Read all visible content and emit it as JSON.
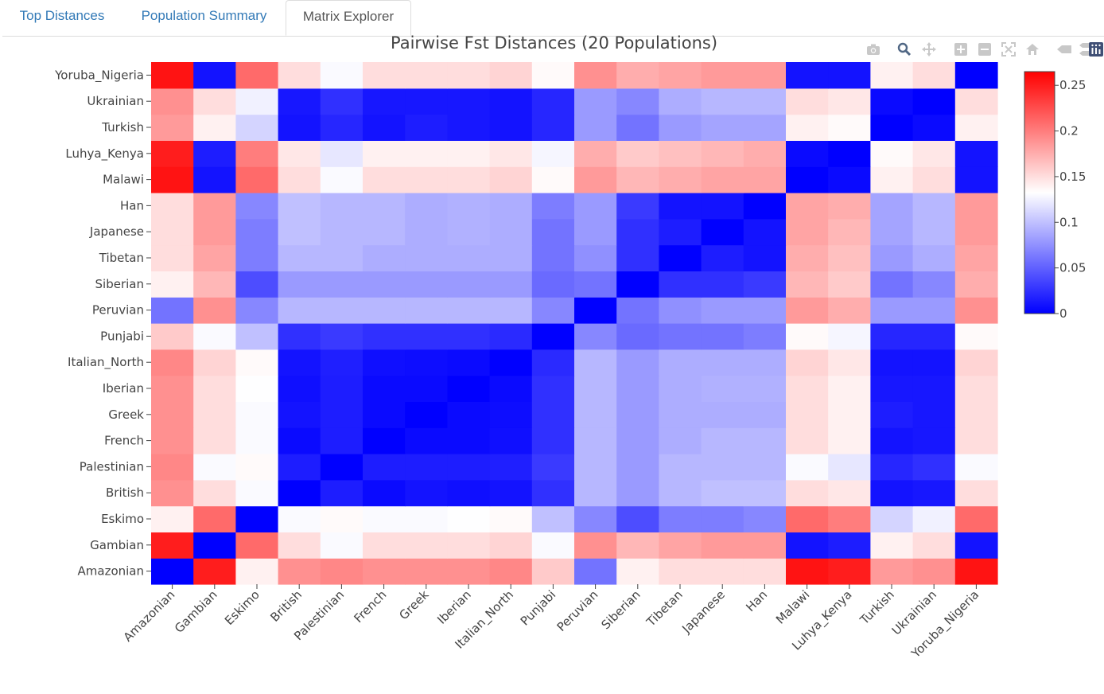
{
  "tabs": [
    {
      "label": "Top Distances",
      "active": false
    },
    {
      "label": "Population Summary",
      "active": false
    },
    {
      "label": "Matrix Explorer",
      "active": true
    }
  ],
  "modebar": [
    "camera-icon",
    "zoom-icon",
    "pan-icon",
    "zoom-in-icon",
    "zoom-out-icon",
    "autoscale-icon",
    "reset-axes-icon",
    "hover-closest-icon",
    "hover-compare-icon",
    "plotly-logo-icon"
  ],
  "chart_data": {
    "type": "heatmap",
    "title": "Pairwise Fst Distances (20 Populations)",
    "x": [
      "Amazonian",
      "Gambian",
      "Eskimo",
      "British",
      "Palestinian",
      "French",
      "Greek",
      "Iberian",
      "Italian_North",
      "Punjabi",
      "Peruvian",
      "Siberian",
      "Tibetan",
      "Japanese",
      "Han",
      "Malawi",
      "Luhya_Kenya",
      "Turkish",
      "Ukrainian",
      "Yoruba_Nigeria"
    ],
    "y": [
      "Amazonian",
      "Gambian",
      "Eskimo",
      "British",
      "Palestinian",
      "French",
      "Greek",
      "Iberian",
      "Italian_North",
      "Punjabi",
      "Peruvian",
      "Siberian",
      "Tibetan",
      "Japanese",
      "Han",
      "Malawi",
      "Luhya_Kenya",
      "Turkish",
      "Ukrainian",
      "Yoruba_Nigeria"
    ],
    "z": [
      [
        0.0,
        0.25,
        0.14,
        0.19,
        0.195,
        0.19,
        0.19,
        0.19,
        0.195,
        0.16,
        0.06,
        0.14,
        0.15,
        0.15,
        0.15,
        0.255,
        0.25,
        0.185,
        0.19,
        0.255
      ],
      [
        0.25,
        0.0,
        0.21,
        0.15,
        0.13,
        0.15,
        0.15,
        0.15,
        0.155,
        0.13,
        0.19,
        0.17,
        0.18,
        0.185,
        0.185,
        0.01,
        0.015,
        0.14,
        0.15,
        0.01
      ],
      [
        0.14,
        0.21,
        0.0,
        0.13,
        0.135,
        0.13,
        0.13,
        0.132,
        0.135,
        0.1,
        0.07,
        0.04,
        0.065,
        0.065,
        0.07,
        0.21,
        0.2,
        0.11,
        0.125,
        0.21
      ],
      [
        0.19,
        0.15,
        0.13,
        0.0,
        0.015,
        0.005,
        0.01,
        0.008,
        0.01,
        0.025,
        0.095,
        0.08,
        0.095,
        0.1,
        0.1,
        0.15,
        0.145,
        0.01,
        0.012,
        0.15
      ],
      [
        0.195,
        0.13,
        0.135,
        0.015,
        0.0,
        0.015,
        0.015,
        0.015,
        0.016,
        0.03,
        0.095,
        0.08,
        0.095,
        0.095,
        0.095,
        0.13,
        0.12,
        0.02,
        0.025,
        0.13
      ],
      [
        0.19,
        0.15,
        0.13,
        0.005,
        0.015,
        0.0,
        0.005,
        0.005,
        0.008,
        0.025,
        0.095,
        0.08,
        0.09,
        0.095,
        0.095,
        0.15,
        0.14,
        0.01,
        0.012,
        0.15
      ],
      [
        0.19,
        0.15,
        0.13,
        0.01,
        0.015,
        0.005,
        0.0,
        0.005,
        0.007,
        0.025,
        0.095,
        0.08,
        0.09,
        0.09,
        0.09,
        0.15,
        0.14,
        0.015,
        0.012,
        0.15
      ],
      [
        0.19,
        0.15,
        0.132,
        0.008,
        0.015,
        0.005,
        0.005,
        0.0,
        0.005,
        0.025,
        0.095,
        0.08,
        0.09,
        0.092,
        0.092,
        0.15,
        0.14,
        0.012,
        0.012,
        0.15
      ],
      [
        0.195,
        0.155,
        0.135,
        0.01,
        0.016,
        0.008,
        0.007,
        0.005,
        0.0,
        0.022,
        0.095,
        0.08,
        0.09,
        0.09,
        0.09,
        0.155,
        0.145,
        0.01,
        0.01,
        0.155
      ],
      [
        0.16,
        0.13,
        0.1,
        0.025,
        0.03,
        0.025,
        0.025,
        0.025,
        0.022,
        0.0,
        0.07,
        0.055,
        0.06,
        0.06,
        0.065,
        0.135,
        0.128,
        0.02,
        0.02,
        0.135
      ],
      [
        0.06,
        0.19,
        0.07,
        0.095,
        0.095,
        0.095,
        0.095,
        0.095,
        0.095,
        0.07,
        0.0,
        0.06,
        0.075,
        0.08,
        0.08,
        0.185,
        0.175,
        0.08,
        0.08,
        0.19
      ],
      [
        0.14,
        0.17,
        0.04,
        0.08,
        0.08,
        0.08,
        0.08,
        0.08,
        0.08,
        0.055,
        0.06,
        0.0,
        0.025,
        0.025,
        0.03,
        0.17,
        0.16,
        0.06,
        0.07,
        0.175
      ],
      [
        0.15,
        0.18,
        0.065,
        0.095,
        0.095,
        0.09,
        0.09,
        0.09,
        0.09,
        0.06,
        0.075,
        0.025,
        0.0,
        0.015,
        0.01,
        0.175,
        0.165,
        0.08,
        0.09,
        0.18
      ],
      [
        0.15,
        0.185,
        0.065,
        0.1,
        0.095,
        0.095,
        0.09,
        0.092,
        0.09,
        0.06,
        0.08,
        0.025,
        0.015,
        0.0,
        0.01,
        0.18,
        0.17,
        0.085,
        0.095,
        0.185
      ],
      [
        0.15,
        0.185,
        0.07,
        0.1,
        0.095,
        0.095,
        0.09,
        0.092,
        0.09,
        0.065,
        0.08,
        0.03,
        0.01,
        0.01,
        0.0,
        0.18,
        0.175,
        0.085,
        0.095,
        0.185
      ],
      [
        0.255,
        0.01,
        0.21,
        0.15,
        0.13,
        0.15,
        0.15,
        0.15,
        0.155,
        0.135,
        0.185,
        0.17,
        0.175,
        0.18,
        0.18,
        0.0,
        0.005,
        0.14,
        0.15,
        0.01
      ],
      [
        0.25,
        0.015,
        0.2,
        0.145,
        0.12,
        0.14,
        0.14,
        0.14,
        0.145,
        0.128,
        0.175,
        0.16,
        0.165,
        0.17,
        0.175,
        0.005,
        0.0,
        0.135,
        0.145,
        0.01
      ],
      [
        0.185,
        0.14,
        0.11,
        0.01,
        0.02,
        0.01,
        0.015,
        0.012,
        0.01,
        0.02,
        0.08,
        0.06,
        0.08,
        0.085,
        0.085,
        0.14,
        0.135,
        0.0,
        0.005,
        0.14
      ],
      [
        0.19,
        0.15,
        0.125,
        0.012,
        0.025,
        0.012,
        0.012,
        0.012,
        0.01,
        0.02,
        0.08,
        0.07,
        0.09,
        0.095,
        0.095,
        0.15,
        0.145,
        0.005,
        0.0,
        0.15
      ],
      [
        0.255,
        0.01,
        0.21,
        0.15,
        0.13,
        0.15,
        0.15,
        0.15,
        0.155,
        0.135,
        0.19,
        0.175,
        0.18,
        0.185,
        0.185,
        0.01,
        0.01,
        0.14,
        0.15,
        0.0
      ]
    ],
    "zmin": 0,
    "zmax": 0.265,
    "colorscale": [
      "#0000ff",
      "#ffffff",
      "#ff0000"
    ],
    "colorbar_ticks": [
      {
        "value": 0,
        "label": "0"
      },
      {
        "value": 0.05,
        "label": "0.05"
      },
      {
        "value": 0.1,
        "label": "0.1"
      },
      {
        "value": 0.15,
        "label": "0.15"
      },
      {
        "value": 0.2,
        "label": "0.2"
      },
      {
        "value": 0.25,
        "label": "0.25"
      }
    ]
  }
}
